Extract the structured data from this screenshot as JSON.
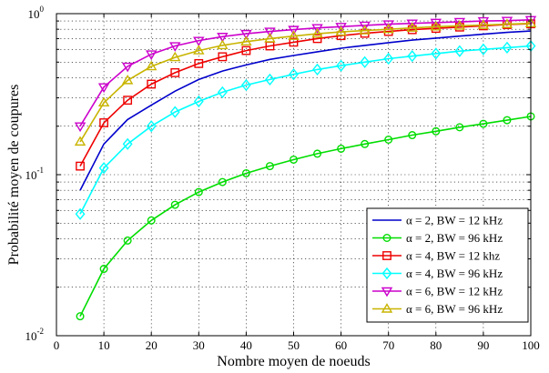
{
  "chart_data": {
    "type": "line",
    "title": "",
    "xlabel": "Nombre moyen de noeuds",
    "ylabel": "Probabilité moyen de coupures",
    "xlim": [
      0,
      100
    ],
    "ylim": [
      0.01,
      1
    ],
    "yscale": "log",
    "grid": true,
    "legend_position": "bottom-right",
    "xticks": [
      0,
      10,
      20,
      30,
      40,
      50,
      60,
      70,
      80,
      90,
      100
    ],
    "x": [
      5,
      10,
      15,
      20,
      25,
      30,
      35,
      40,
      45,
      50,
      55,
      60,
      65,
      70,
      75,
      80,
      85,
      90,
      95,
      100
    ],
    "series": [
      {
        "name": "α = 2, BW = 12 kHz",
        "color": "#0000cc",
        "marker": "none",
        "values": [
          0.08,
          0.155,
          0.22,
          0.27,
          0.33,
          0.39,
          0.44,
          0.48,
          0.52,
          0.55,
          0.58,
          0.61,
          0.635,
          0.66,
          0.685,
          0.705,
          0.725,
          0.745,
          0.765,
          0.78
        ]
      },
      {
        "name": "α = 2, BW = 96 kHz",
        "color": "#00dd00",
        "marker": "circle",
        "values": [
          0.0132,
          0.026,
          0.039,
          0.052,
          0.065,
          0.078,
          0.09,
          0.102,
          0.113,
          0.124,
          0.135,
          0.145,
          0.155,
          0.165,
          0.176,
          0.186,
          0.197,
          0.207,
          0.218,
          0.23
        ]
      },
      {
        "name": "α = 4, BW = 12 khz",
        "color": "#ee0000",
        "marker": "square",
        "values": [
          0.113,
          0.21,
          0.29,
          0.365,
          0.43,
          0.49,
          0.54,
          0.59,
          0.63,
          0.665,
          0.7,
          0.73,
          0.755,
          0.775,
          0.795,
          0.81,
          0.825,
          0.84,
          0.855,
          0.865
        ]
      },
      {
        "name": "α = 4, BW = 96 kHz",
        "color": "#00ffff",
        "marker": "diamond",
        "values": [
          0.057,
          0.11,
          0.155,
          0.2,
          0.245,
          0.285,
          0.325,
          0.36,
          0.39,
          0.42,
          0.45,
          0.475,
          0.5,
          0.525,
          0.545,
          0.565,
          0.585,
          0.6,
          0.615,
          0.63
        ]
      },
      {
        "name": "α = 6, BW = 12 kHz",
        "color": "#cc00cc",
        "marker": "triangle-down",
        "values": [
          0.2,
          0.35,
          0.47,
          0.56,
          0.63,
          0.68,
          0.72,
          0.75,
          0.775,
          0.795,
          0.815,
          0.83,
          0.845,
          0.86,
          0.87,
          0.88,
          0.89,
          0.9,
          0.905,
          0.915
        ]
      },
      {
        "name": "α = 6, BW = 96 kHz",
        "color": "#c8b400",
        "marker": "triangle-up",
        "values": [
          0.16,
          0.28,
          0.385,
          0.47,
          0.535,
          0.59,
          0.635,
          0.67,
          0.7,
          0.725,
          0.75,
          0.77,
          0.785,
          0.8,
          0.815,
          0.83,
          0.84,
          0.85,
          0.86,
          0.87
        ]
      }
    ]
  },
  "yticks": [
    {
      "value": 0.01,
      "base": "10",
      "exp": "-2"
    },
    {
      "value": 0.1,
      "base": "10",
      "exp": "-1"
    },
    {
      "value": 1,
      "base": "10",
      "exp": "0"
    }
  ]
}
